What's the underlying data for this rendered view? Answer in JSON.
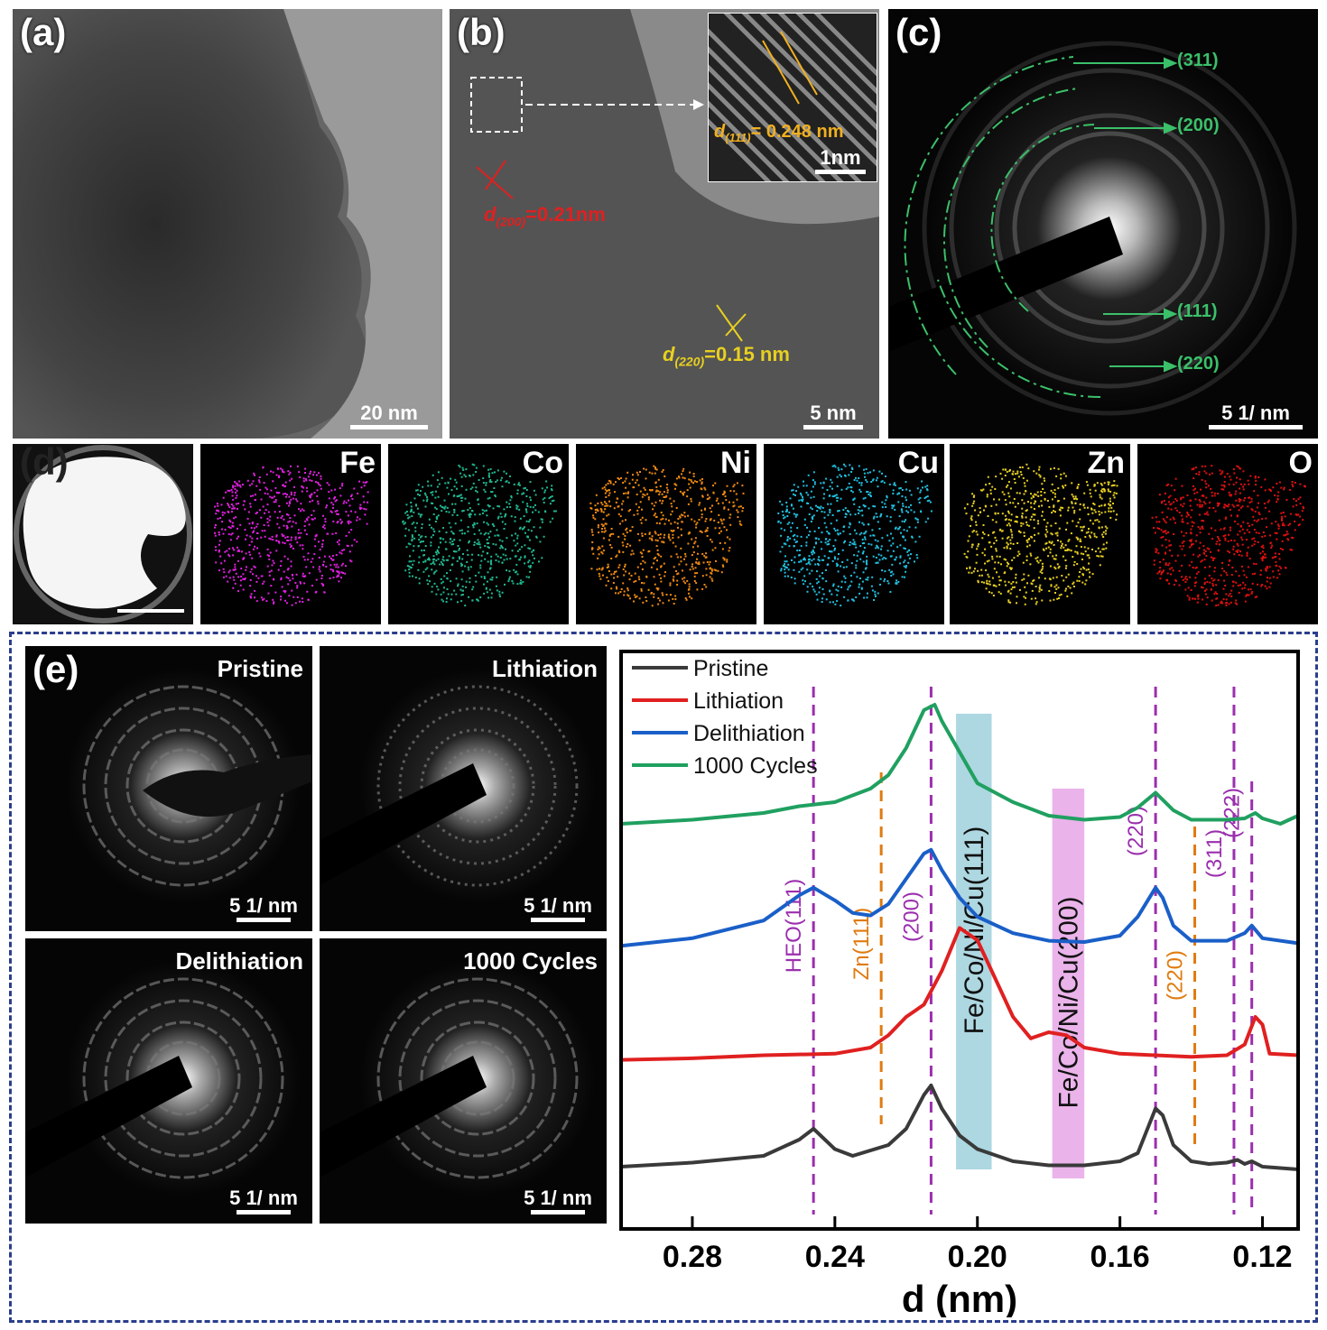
{
  "panel_a": {
    "label": "(a)",
    "scale": "20 nm"
  },
  "panel_b": {
    "label": "(b)",
    "scale": "5 nm",
    "inset_scale": "1nm",
    "d111_main": "d",
    "d111_sub": "(111)",
    "d111_val": "= 0.248 nm",
    "d200_main": "d",
    "d200_sub": "(200)",
    "d200_val": "=0.21nm",
    "d220_main": "d",
    "d220_sub": "(220)",
    "d220_val": "=0.15 nm"
  },
  "panel_c": {
    "label": "(c)",
    "scale": "5 1/ nm",
    "rings": [
      "(311)",
      "(200)",
      "(111)",
      "(220)"
    ]
  },
  "panel_d": {
    "label": "(d)",
    "elements": [
      "Fe",
      "Co",
      "Ni",
      "Cu",
      "Zn",
      "O"
    ],
    "colors": [
      "#e020e0",
      "#20b890",
      "#f08a10",
      "#20c0e0",
      "#e8d020",
      "#e01010"
    ]
  },
  "panel_e": {
    "label": "(e)",
    "saed": [
      {
        "title": "Pristine",
        "scale": "5 1/ nm"
      },
      {
        "title": "Lithiation",
        "scale": "5 1/ nm"
      },
      {
        "title": "Delithiation",
        "scale": "5 1/ nm"
      },
      {
        "title": "1000 Cycles",
        "scale": "5 1/ nm"
      }
    ]
  },
  "chart_data": {
    "type": "line",
    "xlabel": "d (nm)",
    "xlim": [
      0.3,
      0.11
    ],
    "xticks": [
      "0.28",
      "0.24",
      "0.20",
      "0.16",
      "0.12"
    ],
    "xtick_values": [
      0.28,
      0.24,
      0.2,
      0.16,
      0.12
    ],
    "legend_position": "top-left",
    "series": [
      {
        "name": "Pristine",
        "color": "#3a3a3a",
        "x": [
          0.3,
          0.28,
          0.26,
          0.25,
          0.246,
          0.24,
          0.235,
          0.225,
          0.22,
          0.215,
          0.213,
          0.21,
          0.205,
          0.2,
          0.19,
          0.18,
          0.17,
          0.16,
          0.155,
          0.15,
          0.148,
          0.145,
          0.14,
          0.135,
          0.13,
          0.127,
          0.125,
          0.123,
          0.12,
          0.11
        ],
        "y": [
          0.02,
          0.05,
          0.1,
          0.22,
          0.3,
          0.15,
          0.1,
          0.18,
          0.3,
          0.55,
          0.62,
          0.45,
          0.25,
          0.15,
          0.06,
          0.03,
          0.03,
          0.06,
          0.12,
          0.45,
          0.4,
          0.18,
          0.06,
          0.04,
          0.05,
          0.07,
          0.04,
          0.06,
          0.02,
          0.0
        ]
      },
      {
        "name": "Lithiation",
        "color": "#e02020",
        "x": [
          0.3,
          0.28,
          0.26,
          0.24,
          0.23,
          0.225,
          0.22,
          0.215,
          0.21,
          0.205,
          0.2,
          0.195,
          0.19,
          0.185,
          0.18,
          0.175,
          0.17,
          0.16,
          0.15,
          0.14,
          0.13,
          0.125,
          0.122,
          0.12,
          0.118,
          0.11
        ],
        "y": [
          0.02,
          0.03,
          0.05,
          0.06,
          0.1,
          0.18,
          0.3,
          0.38,
          0.6,
          0.88,
          0.8,
          0.55,
          0.3,
          0.16,
          0.2,
          0.18,
          0.1,
          0.06,
          0.05,
          0.04,
          0.05,
          0.12,
          0.3,
          0.25,
          0.06,
          0.05
        ]
      },
      {
        "name": "Delithiation",
        "color": "#1a5fc8",
        "x": [
          0.3,
          0.28,
          0.26,
          0.25,
          0.246,
          0.24,
          0.235,
          0.23,
          0.225,
          0.22,
          0.215,
          0.213,
          0.21,
          0.205,
          0.2,
          0.19,
          0.18,
          0.17,
          0.16,
          0.155,
          0.15,
          0.148,
          0.145,
          0.14,
          0.13,
          0.125,
          0.123,
          0.12,
          0.11
        ],
        "y": [
          0.02,
          0.08,
          0.22,
          0.42,
          0.48,
          0.38,
          0.28,
          0.26,
          0.35,
          0.55,
          0.75,
          0.78,
          0.62,
          0.4,
          0.25,
          0.12,
          0.06,
          0.05,
          0.1,
          0.25,
          0.48,
          0.4,
          0.18,
          0.06,
          0.06,
          0.12,
          0.18,
          0.08,
          0.04
        ]
      },
      {
        "name": "1000 Cycles",
        "color": "#20a060",
        "x": [
          0.3,
          0.28,
          0.26,
          0.25,
          0.24,
          0.23,
          0.225,
          0.22,
          0.215,
          0.212,
          0.21,
          0.205,
          0.2,
          0.19,
          0.18,
          0.17,
          0.16,
          0.155,
          0.15,
          0.145,
          0.14,
          0.13,
          0.125,
          0.122,
          0.12,
          0.115,
          0.11
        ],
        "y": [
          0.02,
          0.05,
          0.1,
          0.15,
          0.18,
          0.28,
          0.38,
          0.58,
          0.86,
          0.9,
          0.78,
          0.55,
          0.32,
          0.18,
          0.08,
          0.05,
          0.07,
          0.14,
          0.25,
          0.12,
          0.05,
          0.05,
          0.06,
          0.1,
          0.06,
          0.02,
          0.08
        ]
      }
    ],
    "reference_lines": [
      {
        "label": "HEO(111)",
        "x": 0.246,
        "color": "#9b2fae"
      },
      {
        "label": "Zn(111)",
        "x": 0.227,
        "color": "#e07b10"
      },
      {
        "label": "(200)",
        "x": 0.213,
        "color": "#9b2fae"
      },
      {
        "label": "(220)",
        "x": 0.15,
        "color": "#9b2fae"
      },
      {
        "label": "(220)",
        "x": 0.139,
        "color": "#e07b10"
      },
      {
        "label": "(311)",
        "x": 0.128,
        "color": "#9b2fae"
      },
      {
        "label": "(222)",
        "x": 0.123,
        "color": "#9b2fae"
      }
    ],
    "bands": [
      {
        "label": "Fe/Co/Ni/Cu(111)",
        "x": [
          0.206,
          0.196
        ],
        "color": "#9fd0dc"
      },
      {
        "label": "Fe/Co/Ni/Cu(200)",
        "x": [
          0.179,
          0.17
        ],
        "color": "#e6a6e6"
      }
    ]
  }
}
